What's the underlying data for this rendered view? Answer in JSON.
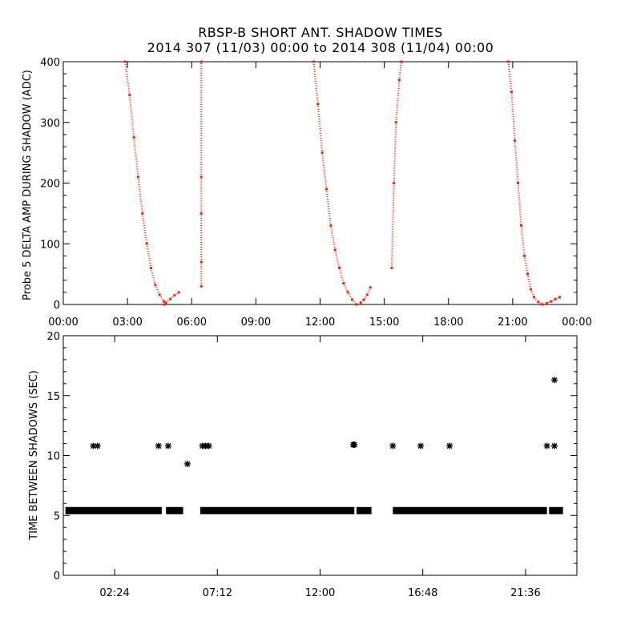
{
  "header": {
    "title": "RBSP-B SHORT ANT. SHADOW TIMES",
    "subtitle": "2014 307 (11/03) 00:00 to 2014 308 (11/04) 00:00"
  },
  "chart_data": [
    {
      "type": "scatter",
      "ylabel": "Probe 5 DELTA AMP DURING SHADOW (ADC)",
      "xlabel": "",
      "x_unit": "hours",
      "xlim": [
        0,
        24
      ],
      "ylim": [
        0,
        400
      ],
      "xticks": [
        "00:00",
        "03:00",
        "06:00",
        "09:00",
        "12:00",
        "15:00",
        "18:00",
        "21:00",
        "00:00"
      ],
      "yticks": [
        "0",
        "100",
        "200",
        "300",
        "400"
      ],
      "grid": false,
      "marker_color": "#ff2000",
      "series": [
        {
          "x": [
            2.9,
            3.1,
            3.3,
            3.5,
            3.7,
            3.9,
            4.1,
            4.3,
            4.5,
            4.7,
            4.72
          ],
          "y": [
            400,
            345,
            275,
            210,
            150,
            100,
            60,
            32,
            16,
            5,
            0
          ]
        },
        {
          "x": [
            4.8,
            5.0,
            5.2,
            5.4
          ],
          "y": [
            3,
            9,
            15,
            20
          ]
        },
        {
          "x": [
            6.45,
            6.45,
            6.45,
            6.45,
            6.45
          ],
          "y": [
            30,
            70,
            150,
            210,
            400
          ]
        },
        {
          "x": [
            11.7,
            11.9,
            12.1,
            12.3,
            12.5,
            12.7,
            12.9,
            13.1,
            13.3,
            13.5,
            13.7
          ],
          "y": [
            400,
            330,
            250,
            190,
            130,
            90,
            60,
            35,
            20,
            8,
            0
          ]
        },
        {
          "x": [
            13.9,
            14.05,
            14.2,
            14.35
          ],
          "y": [
            3,
            8,
            16,
            28
          ]
        },
        {
          "x": [
            15.35,
            15.45,
            15.55,
            15.7,
            15.8
          ],
          "y": [
            60,
            200,
            300,
            370,
            400
          ]
        },
        {
          "x": [
            20.8,
            20.95,
            21.1,
            21.25,
            21.4,
            21.55,
            21.7,
            21.85,
            22.0,
            22.2,
            22.4
          ],
          "y": [
            400,
            350,
            270,
            200,
            130,
            80,
            50,
            25,
            12,
            4,
            0
          ]
        },
        {
          "x": [
            22.6,
            22.8,
            23.0,
            23.2
          ],
          "y": [
            2,
            5,
            9,
            12
          ]
        }
      ]
    },
    {
      "type": "scatter",
      "ylabel": "TIME BETWEEN SHADOWS (SEC)",
      "xlabel": "",
      "x_unit": "hours",
      "xlim": [
        0,
        24
      ],
      "ylim": [
        0,
        20
      ],
      "xticks": [
        "02:24",
        "07:12",
        "12:00",
        "16:48",
        "21:36"
      ],
      "yticks": [
        "0",
        "5",
        "10",
        "15",
        "20"
      ],
      "grid": false,
      "marker": "asterisk",
      "marker_color": "#000000",
      "baseline_segments": [
        {
          "x_start": 0.1,
          "x_end": 4.6,
          "y": 5.4
        },
        {
          "x_start": 4.8,
          "x_end": 5.6,
          "y": 5.4
        },
        {
          "x_start": 6.4,
          "x_end": 13.6,
          "y": 5.4
        },
        {
          "x_start": 13.7,
          "x_end": 14.4,
          "y": 5.4
        },
        {
          "x_start": 15.4,
          "x_end": 22.6,
          "y": 5.4
        },
        {
          "x_start": 22.7,
          "x_end": 23.35,
          "y": 5.4
        }
      ],
      "points": [
        {
          "x": 1.4,
          "y": 10.8
        },
        {
          "x": 1.6,
          "y": 10.8
        },
        {
          "x": 4.45,
          "y": 10.8
        },
        {
          "x": 4.9,
          "y": 10.8
        },
        {
          "x": 5.8,
          "y": 9.3
        },
        {
          "x": 6.5,
          "y": 10.8
        },
        {
          "x": 6.65,
          "y": 10.8
        },
        {
          "x": 6.8,
          "y": 10.8
        },
        {
          "x": 13.55,
          "y": 10.9
        },
        {
          "x": 13.6,
          "y": 10.9
        },
        {
          "x": 15.4,
          "y": 10.8
        },
        {
          "x": 16.7,
          "y": 10.8
        },
        {
          "x": 18.05,
          "y": 10.8
        },
        {
          "x": 22.6,
          "y": 10.8
        },
        {
          "x": 22.95,
          "y": 10.8
        },
        {
          "x": 22.95,
          "y": 16.3
        }
      ]
    }
  ]
}
